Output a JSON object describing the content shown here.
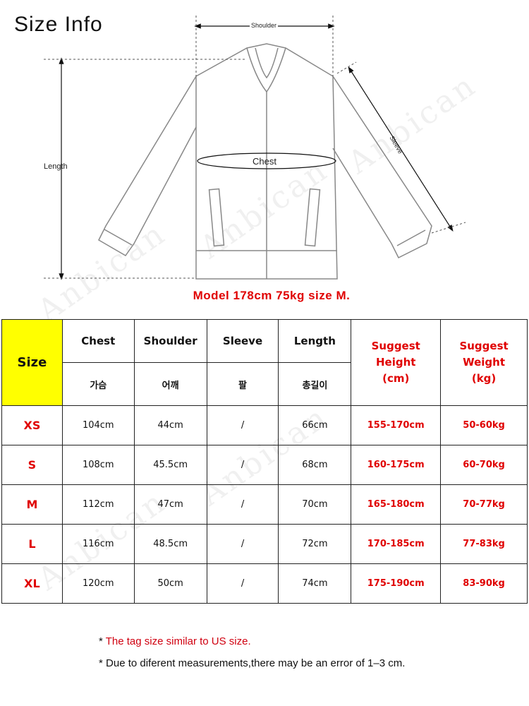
{
  "title": "Size Info",
  "diagram": {
    "shoulder": "Shoulder",
    "chest": "Chest",
    "sleeve": "Sleeve",
    "length": "Length",
    "watermark": "Anbican"
  },
  "model_note": "Model 178cm 75kg size M.",
  "table": {
    "size_header": "Size",
    "headers": [
      {
        "en": "Chest",
        "kr": "가슴"
      },
      {
        "en": "Shoulder",
        "kr": "어깨"
      },
      {
        "en": "Sleeve",
        "kr": "팔"
      },
      {
        "en": "Length",
        "kr": "총길이"
      }
    ],
    "suggest_height": [
      "Suggest",
      "Height",
      "(cm)"
    ],
    "suggest_weight": [
      "Suggest",
      "Weight",
      "(kg)"
    ],
    "rows": [
      {
        "size": "XS",
        "chest": "104cm",
        "shoulder": "44cm",
        "sleeve": "/",
        "length": "66cm",
        "height": "155-170cm",
        "weight": "50-60kg"
      },
      {
        "size": "S",
        "chest": "108cm",
        "shoulder": "45.5cm",
        "sleeve": "/",
        "length": "68cm",
        "height": "160-175cm",
        "weight": "60-70kg"
      },
      {
        "size": "M",
        "chest": "112cm",
        "shoulder": "47cm",
        "sleeve": "/",
        "length": "70cm",
        "height": "165-180cm",
        "weight": "70-77kg"
      },
      {
        "size": "L",
        "chest": "116cm",
        "shoulder": "48.5cm",
        "sleeve": "/",
        "length": "72cm",
        "height": "170-185cm",
        "weight": "77-83kg"
      },
      {
        "size": "XL",
        "chest": "120cm",
        "shoulder": "50cm",
        "sleeve": "/",
        "length": "74cm",
        "height": "175-190cm",
        "weight": "83-90kg"
      }
    ]
  },
  "notes": {
    "bullet": "*",
    "note1": "The tag size similar to US size.",
    "note2": "Due to diferent measurements,there may be an error of 1–3 cm."
  },
  "colors": {
    "accent_red": "#e00000",
    "size_yellow": "#ffff00"
  }
}
